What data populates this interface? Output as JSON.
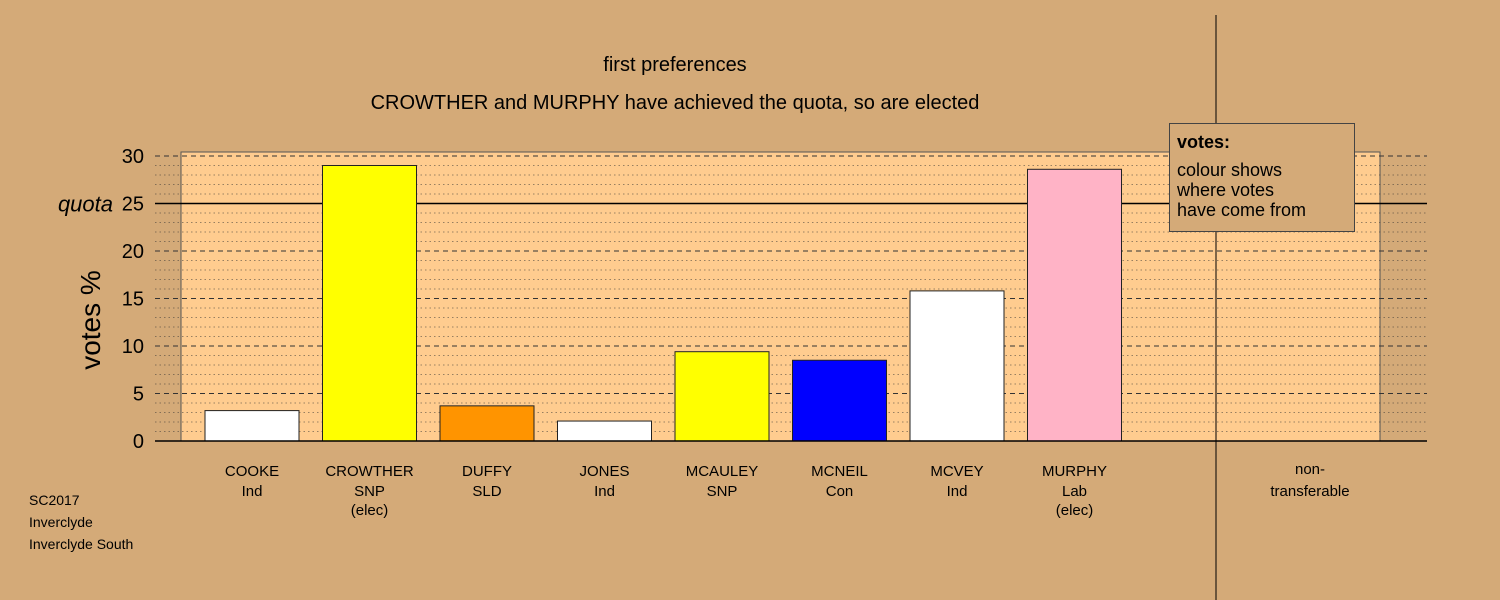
{
  "chart_data": {
    "type": "bar",
    "title": "first preferences",
    "subtitle": "CROWTHER and MURPHY have achieved the quota, so are elected",
    "ylabel": "votes %",
    "ylim": [
      0,
      30
    ],
    "yticks": [
      0,
      5,
      10,
      15,
      20,
      25,
      30
    ],
    "quota": {
      "label": "quota",
      "value": 25
    },
    "grid": true,
    "categories": [
      {
        "name": "COOKE",
        "party": "Ind",
        "note": "",
        "value": 3.2,
        "color": "#ffffff"
      },
      {
        "name": "CROWTHER",
        "party": "SNP",
        "note": "(elec)",
        "value": 29.0,
        "color": "#ffff00"
      },
      {
        "name": "DUFFY",
        "party": "SLD",
        "note": "",
        "value": 3.7,
        "color": "#ff9400"
      },
      {
        "name": "JONES",
        "party": "Ind",
        "note": "",
        "value": 2.1,
        "color": "#ffffff"
      },
      {
        "name": "MCAULEY",
        "party": "SNP",
        "note": "",
        "value": 9.4,
        "color": "#ffff00"
      },
      {
        "name": "MCNEIL",
        "party": "Con",
        "note": "",
        "value": 8.5,
        "color": "#0000ff"
      },
      {
        "name": "MCVEY",
        "party": "Ind",
        "note": "",
        "value": 15.8,
        "color": "#ffffff"
      },
      {
        "name": "MURPHY",
        "party": "Lab",
        "note": "(elec)",
        "value": 28.6,
        "color": "#ffb3c6"
      }
    ],
    "nontransferable": {
      "line1": "non-",
      "line2": "transferable",
      "value": 0
    },
    "colors": {
      "background": "#d4aa78",
      "plot_area": "#ffcc8f"
    }
  },
  "legend": {
    "title": "votes:",
    "lines": [
      "colour shows",
      "where votes",
      "have come from"
    ]
  },
  "footer": {
    "line1": "SC2017",
    "line2": "Inverclyde",
    "line3": "Inverclyde South"
  }
}
